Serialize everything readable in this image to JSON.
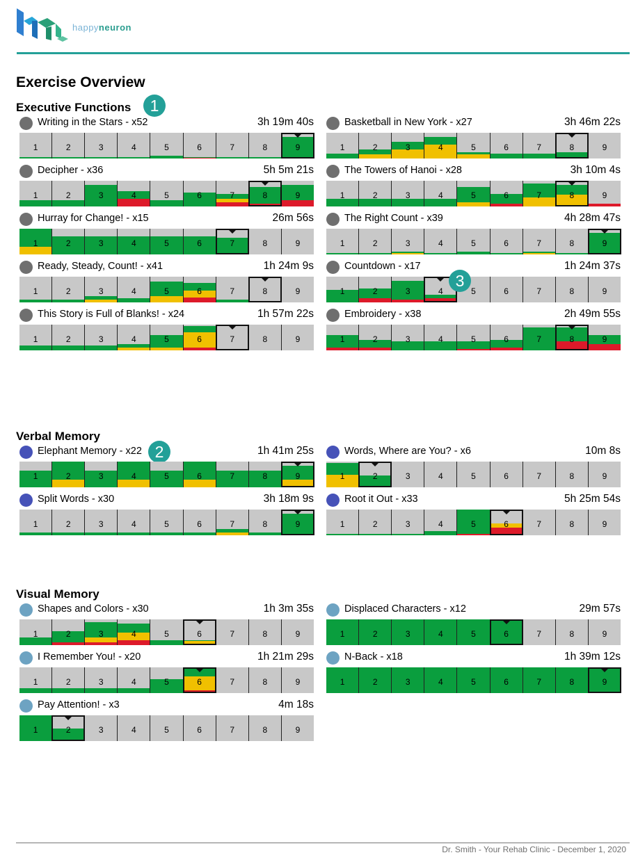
{
  "brand": {
    "name_part1": "happy",
    "name_part2": "neuron",
    "colors": {
      "teal": "#23a098",
      "light_blue": "#7ab3d6"
    }
  },
  "document": {
    "title": "Exercise Overview"
  },
  "footer": {
    "text": "Dr. Smith - Your Rehab Clinic - December 1, 2020"
  },
  "level_colors": {
    "green": "#0a9e3e",
    "yellow": "#f0c000",
    "red": "#dd1a2a",
    "empty": "#c8c8c8"
  },
  "sections": [
    {
      "title": "Executive Functions",
      "badge": "1",
      "exercises": [
        {
          "name": "Writing in the Stars - x52",
          "time": "3h 19m 40s",
          "category": "grey",
          "current": 9,
          "levels": [
            [
              0.05,
              0,
              0
            ],
            [
              0.05,
              0,
              0
            ],
            [
              0.05,
              0,
              0
            ],
            [
              0.05,
              0,
              0
            ],
            [
              0.1,
              0,
              0
            ],
            [
              0.03,
              0,
              0.03
            ],
            [
              0.05,
              0,
              0
            ],
            [
              0.05,
              0,
              0
            ],
            [
              0.85,
              0,
              0
            ]
          ]
        },
        {
          "name": "Basketball in New York - x27",
          "time": "3h 46m 22s",
          "category": "grey",
          "current": 8,
          "levels": [
            [
              0.2,
              0,
              0
            ],
            [
              0.2,
              0.15,
              0
            ],
            [
              0.3,
              0.35,
              0
            ],
            [
              0.3,
              0.55,
              0
            ],
            [
              0.1,
              0.15,
              0
            ],
            [
              0.2,
              0,
              0
            ],
            [
              0.2,
              0,
              0
            ],
            [
              0.25,
              0,
              0
            ],
            [
              0,
              0,
              0
            ]
          ]
        },
        {
          "name": "Decipher - x36",
          "time": "5h 5m 21s",
          "category": "grey",
          "current": 8,
          "levels": [
            [
              0.25,
              0,
              0
            ],
            [
              0.25,
              0,
              0
            ],
            [
              0.85,
              0,
              0
            ],
            [
              0.3,
              0,
              0.3
            ],
            [
              0.25,
              0,
              0
            ],
            [
              0.55,
              0,
              0
            ],
            [
              0.2,
              0.15,
              0.15
            ],
            [
              0.65,
              0,
              0.1
            ],
            [
              0.6,
              0,
              0.25
            ]
          ]
        },
        {
          "name": "The Towers of Hanoi - x28",
          "time": "3h 10m 4s",
          "category": "grey",
          "current": 8,
          "levels": [
            [
              0.3,
              0,
              0
            ],
            [
              0.3,
              0,
              0
            ],
            [
              0.3,
              0,
              0
            ],
            [
              0.3,
              0,
              0
            ],
            [
              0.6,
              0.15,
              0
            ],
            [
              0.4,
              0,
              0.1
            ],
            [
              0.55,
              0.35,
              0
            ],
            [
              0.4,
              0.4,
              0.05
            ],
            [
              0,
              0,
              0.1
            ]
          ]
        },
        {
          "name": "Hurray for Change! - x15",
          "time": "26m 56s",
          "category": "grey",
          "current": 7,
          "levels": [
            [
              0.7,
              0.3,
              0
            ],
            [
              0.7,
              0,
              0
            ],
            [
              0.7,
              0,
              0
            ],
            [
              0.7,
              0,
              0
            ],
            [
              0.7,
              0,
              0
            ],
            [
              0.7,
              0,
              0
            ],
            [
              0.65,
              0,
              0
            ],
            [
              0,
              0,
              0
            ],
            [
              0,
              0,
              0
            ]
          ]
        },
        {
          "name": "The Right Count - x39",
          "time": "4h 28m 47s",
          "category": "grey",
          "current": 9,
          "levels": [
            [
              0.05,
              0,
              0
            ],
            [
              0.05,
              0,
              0
            ],
            [
              0.05,
              0.05,
              0
            ],
            [
              0.05,
              0,
              0
            ],
            [
              0.1,
              0,
              0
            ],
            [
              0.05,
              0,
              0
            ],
            [
              0.05,
              0.05,
              0
            ],
            [
              0.05,
              0,
              0
            ],
            [
              0.85,
              0,
              0
            ]
          ]
        },
        {
          "name": "Ready, Steady, Count! - x41",
          "time": "1h 24m 9s",
          "category": "grey",
          "current": 8,
          "levels": [
            [
              0.1,
              0,
              0
            ],
            [
              0.1,
              0,
              0
            ],
            [
              0.15,
              0.1,
              0
            ],
            [
              0.15,
              0,
              0
            ],
            [
              0.55,
              0.25,
              0
            ],
            [
              0.3,
              0.25,
              0.2
            ],
            [
              0.1,
              0,
              0
            ],
            [
              0,
              0,
              0
            ],
            [
              0,
              0,
              0
            ]
          ]
        },
        {
          "name": "Countdown - x17",
          "time": "1h 24m 37s",
          "category": "grey",
          "current": 4,
          "levels": [
            [
              0.5,
              0,
              0
            ],
            [
              0.4,
              0,
              0.15
            ],
            [
              0.75,
              0,
              0.1
            ],
            [
              0.15,
              0,
              0.15
            ],
            [
              0,
              0,
              0
            ],
            [
              0,
              0,
              0
            ],
            [
              0,
              0,
              0
            ],
            [
              0,
              0,
              0
            ],
            [
              0,
              0,
              0
            ]
          ]
        },
        {
          "name": "This Story is Full of Blanks! - x24",
          "time": "1h 57m 22s",
          "category": "grey",
          "current": 7,
          "levels": [
            [
              0.2,
              0,
              0
            ],
            [
              0.2,
              0,
              0
            ],
            [
              0.2,
              0,
              0
            ],
            [
              0.15,
              0.1,
              0
            ],
            [
              0.5,
              0.1,
              0
            ],
            [
              0.25,
              0.6,
              0.1
            ],
            [
              0.05,
              0,
              0
            ],
            [
              0,
              0,
              0
            ],
            [
              0,
              0,
              0
            ]
          ]
        },
        {
          "name": "Embroidery - x38",
          "time": "2h 49m 55s",
          "category": "grey",
          "current": 8,
          "levels": [
            [
              0.5,
              0,
              0.1
            ],
            [
              0.3,
              0,
              0.1
            ],
            [
              0.35,
              0,
              0
            ],
            [
              0.35,
              0,
              0
            ],
            [
              0.3,
              0,
              0.05
            ],
            [
              0.3,
              0,
              0.1
            ],
            [
              0.9,
              0,
              0
            ],
            [
              0.55,
              0,
              0.35
            ],
            [
              0.35,
              0,
              0.25
            ]
          ]
        }
      ]
    },
    {
      "title": "Verbal Memory",
      "badge": "2",
      "exercises": [
        {
          "name": "Elephant Memory - x22",
          "time": "1h 41m 25s",
          "category": "blue",
          "current": 9,
          "levels": [
            [
              0.65,
              0,
              0
            ],
            [
              0.7,
              0.3,
              0
            ],
            [
              0.65,
              0,
              0
            ],
            [
              0.7,
              0.3,
              0
            ],
            [
              0.65,
              0,
              0
            ],
            [
              0.7,
              0.3,
              0
            ],
            [
              0.65,
              0,
              0
            ],
            [
              0.65,
              0,
              0
            ],
            [
              0.55,
              0.3,
              0
            ]
          ]
        },
        {
          "name": "Words, Where are You? - x6",
          "time": "10m 8s",
          "category": "blue",
          "current": 2,
          "levels": [
            [
              0.45,
              0.5,
              0
            ],
            [
              0.45,
              0,
              0
            ],
            [
              0,
              0,
              0
            ],
            [
              0,
              0,
              0
            ],
            [
              0,
              0,
              0
            ],
            [
              0,
              0,
              0
            ],
            [
              0,
              0,
              0
            ],
            [
              0,
              0,
              0
            ],
            [
              0,
              0,
              0
            ]
          ]
        },
        {
          "name": "Split Words - x30",
          "time": "3h 18m 9s",
          "category": "blue",
          "current": 9,
          "levels": [
            [
              0.1,
              0,
              0
            ],
            [
              0.1,
              0,
              0
            ],
            [
              0.1,
              0,
              0
            ],
            [
              0.1,
              0,
              0
            ],
            [
              0.1,
              0,
              0
            ],
            [
              0.1,
              0,
              0
            ],
            [
              0.15,
              0.1,
              0
            ],
            [
              0.1,
              0,
              0
            ],
            [
              0.85,
              0,
              0
            ]
          ]
        },
        {
          "name": "Root it Out - x33",
          "time": "5h 25m 54s",
          "category": "blue",
          "current": 6,
          "levels": [
            [
              0.05,
              0,
              0
            ],
            [
              0.05,
              0,
              0
            ],
            [
              0.05,
              0,
              0
            ],
            [
              0.15,
              0,
              0
            ],
            [
              0.95,
              0,
              0.05
            ],
            [
              0,
              0.15,
              0.3
            ],
            [
              0,
              0,
              0
            ],
            [
              0,
              0,
              0
            ],
            [
              0,
              0,
              0
            ]
          ]
        }
      ]
    },
    {
      "title": "Visual Memory",
      "exercises": [
        {
          "name": "Shapes and Colors - x30",
          "time": "1h 3m 35s",
          "category": "lblue",
          "current": 6,
          "levels": [
            [
              0.3,
              0,
              0
            ],
            [
              0.45,
              0,
              0.1
            ],
            [
              0.6,
              0.2,
              0.1
            ],
            [
              0.35,
              0.3,
              0.2
            ],
            [
              0.2,
              0,
              0
            ],
            [
              0.05,
              0.15,
              0
            ],
            [
              0,
              0,
              0
            ],
            [
              0,
              0,
              0
            ],
            [
              0,
              0,
              0
            ]
          ]
        },
        {
          "name": "Displaced Characters - x12",
          "time": "29m 57s",
          "category": "lblue",
          "current": 6,
          "levels": [
            [
              1,
              0,
              0
            ],
            [
              1,
              0,
              0
            ],
            [
              1,
              0,
              0
            ],
            [
              1,
              0,
              0
            ],
            [
              1,
              0,
              0
            ],
            [
              1,
              0,
              0
            ],
            [
              0,
              0,
              0
            ],
            [
              0,
              0,
              0
            ],
            [
              0,
              0,
              0
            ]
          ]
        },
        {
          "name": "I Remember You! - x20",
          "time": "1h 21m 29s",
          "category": "lblue",
          "current": 6,
          "levels": [
            [
              0.2,
              0,
              0
            ],
            [
              0.2,
              0,
              0
            ],
            [
              0.2,
              0,
              0
            ],
            [
              0.2,
              0,
              0
            ],
            [
              0.55,
              0,
              0
            ],
            [
              0.35,
              0.55,
              0.1
            ],
            [
              0,
              0,
              0
            ],
            [
              0,
              0,
              0
            ],
            [
              0,
              0,
              0
            ]
          ]
        },
        {
          "name": "N-Back - x18",
          "time": "1h 39m 12s",
          "category": "lblue",
          "current": 9,
          "levels": [
            [
              1,
              0,
              0
            ],
            [
              1,
              0,
              0
            ],
            [
              1,
              0,
              0
            ],
            [
              1,
              0,
              0
            ],
            [
              1,
              0,
              0
            ],
            [
              1,
              0,
              0
            ],
            [
              1,
              0,
              0
            ],
            [
              1,
              0,
              0
            ],
            [
              1,
              0,
              0
            ]
          ]
        },
        {
          "name": "Pay Attention! - x3",
          "time": "4m 18s",
          "category": "lblue",
          "current": 2,
          "levels": [
            [
              1,
              0,
              0
            ],
            [
              0.5,
              0,
              0
            ],
            [
              0,
              0,
              0
            ],
            [
              0,
              0,
              0
            ],
            [
              0,
              0,
              0
            ],
            [
              0,
              0,
              0
            ],
            [
              0,
              0,
              0
            ],
            [
              0,
              0,
              0
            ],
            [
              0,
              0,
              0
            ]
          ]
        }
      ]
    }
  ],
  "extra_badges": [
    {
      "label": "3"
    }
  ]
}
